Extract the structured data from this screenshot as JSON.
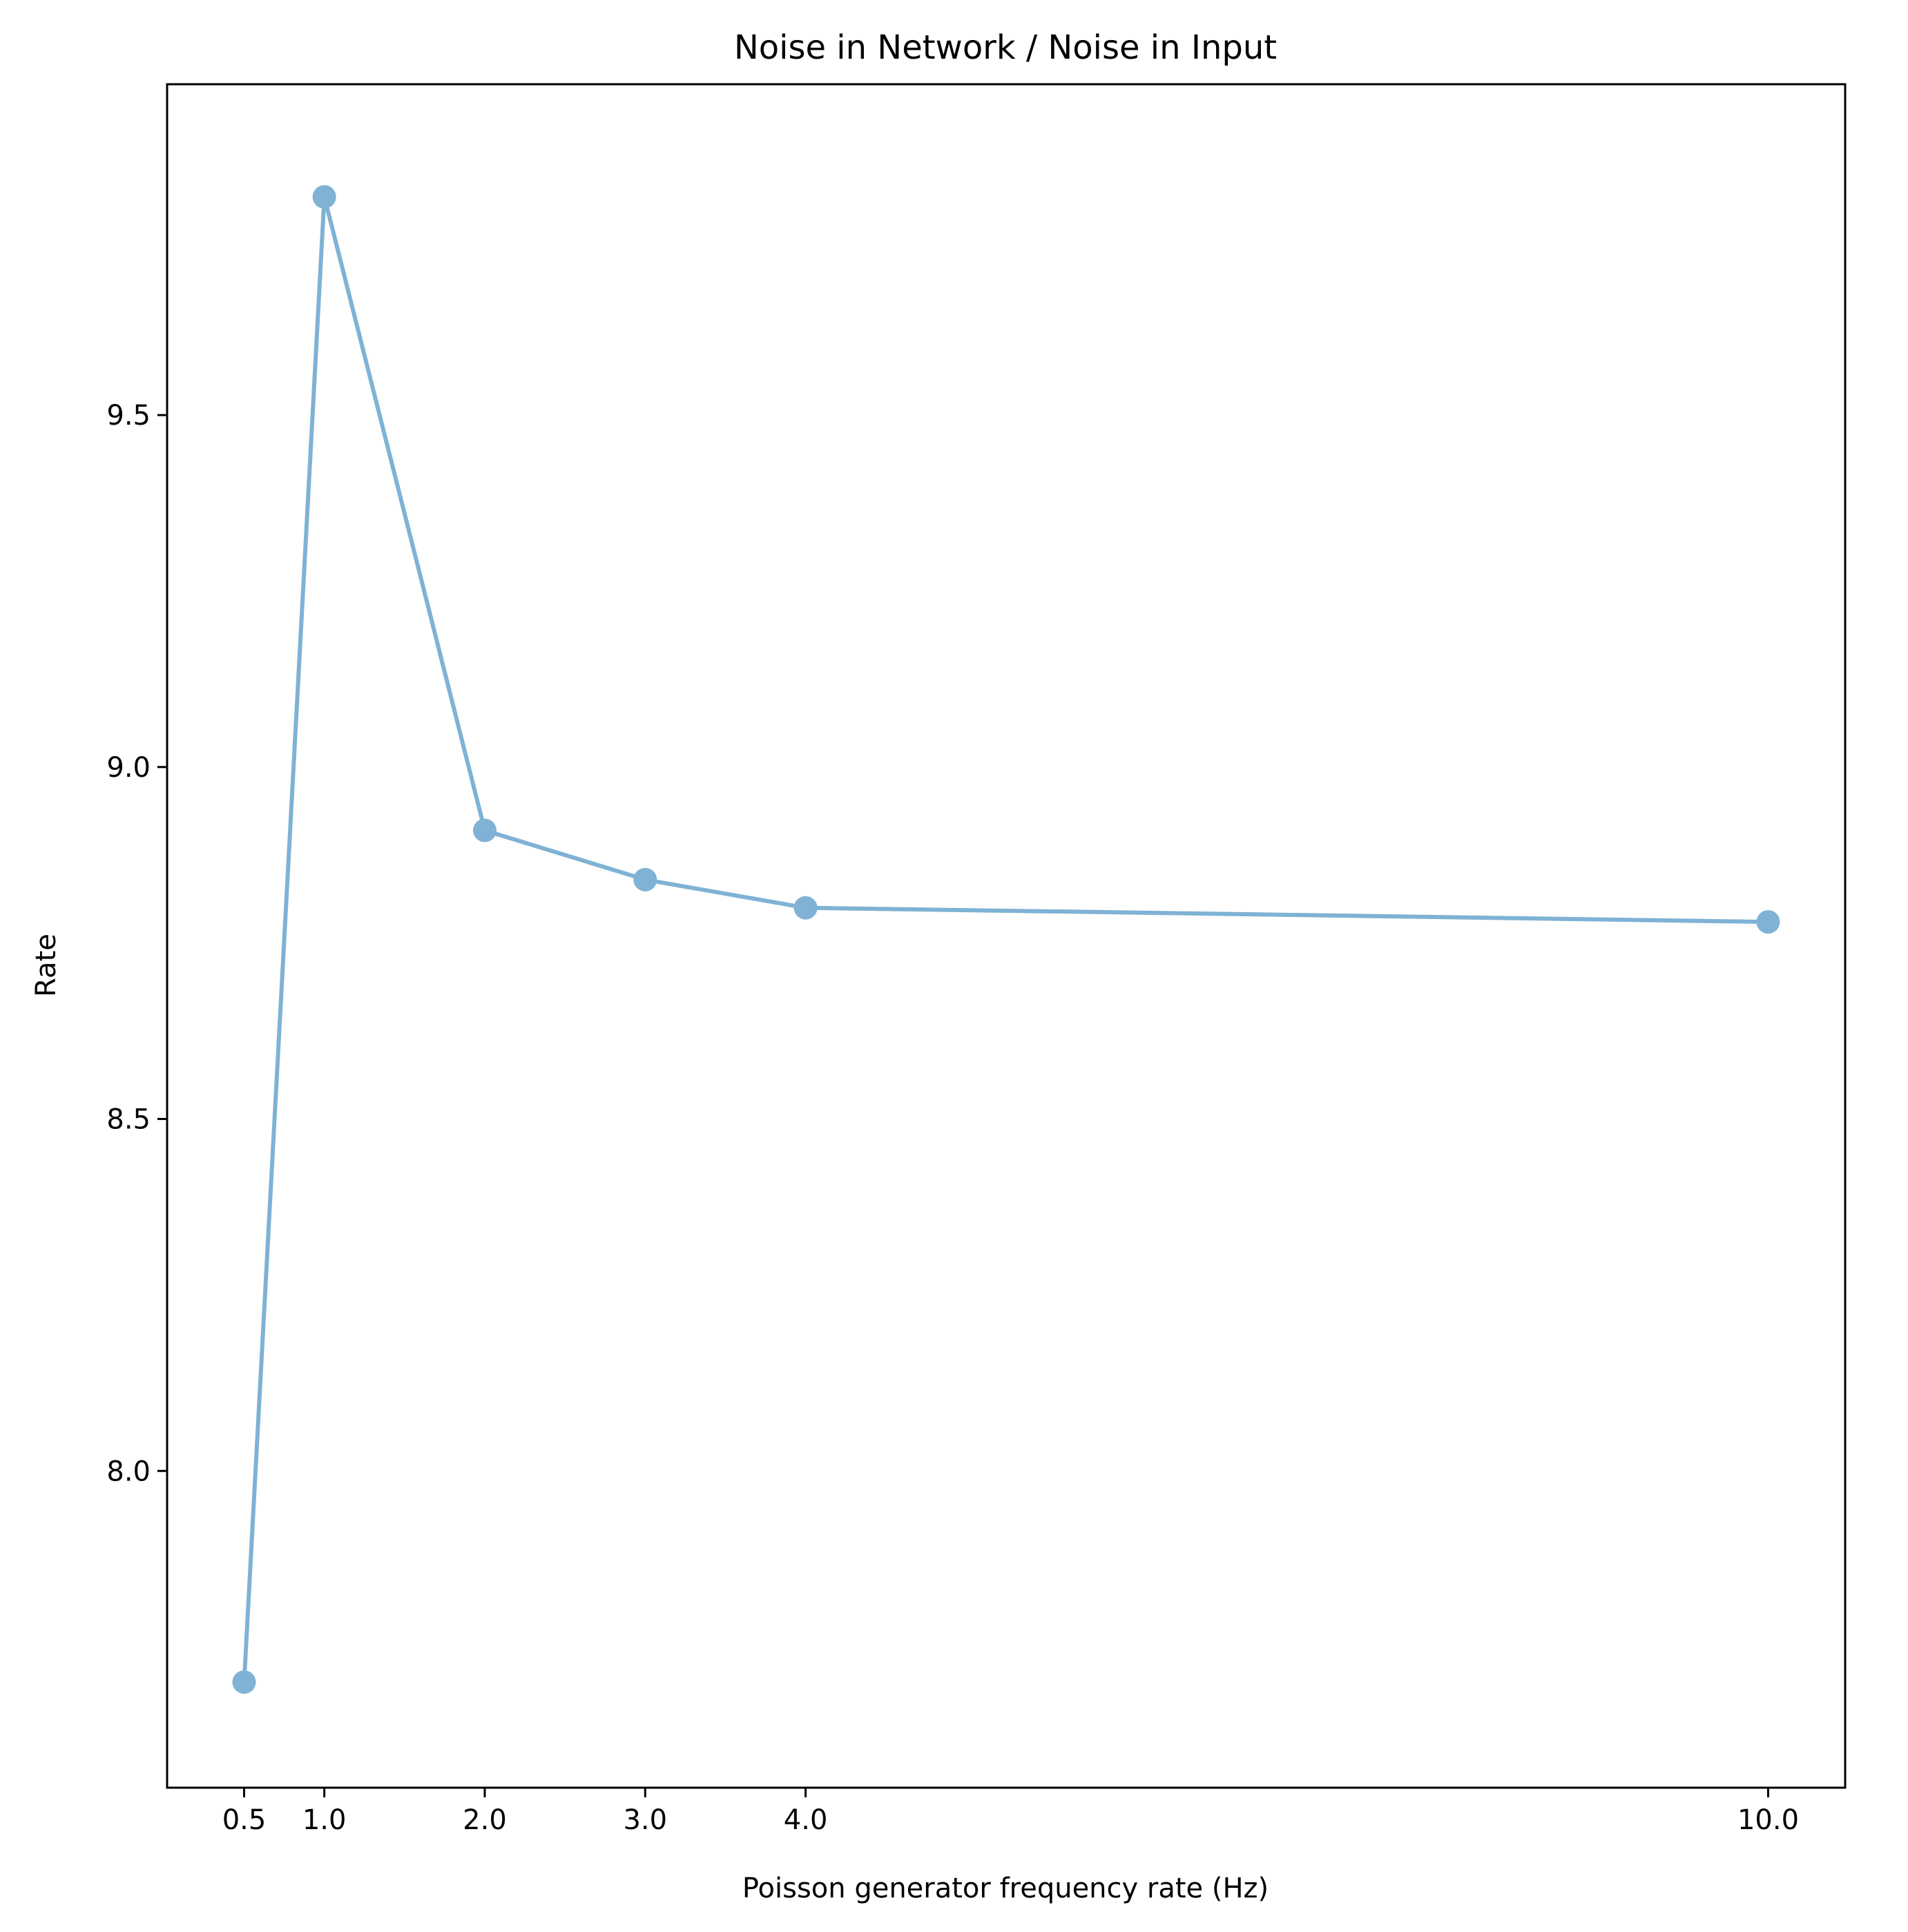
{
  "chart_data": {
    "type": "line",
    "title": "Noise in Network / Noise in Input",
    "xlabel": "Poisson generator frequency rate (Hz)",
    "ylabel": "Rate",
    "x": [
      0.5,
      1.0,
      2.0,
      3.0,
      4.0,
      10.0
    ],
    "x_tick_labels": [
      "0.5",
      "1.0",
      "2.0",
      "3.0",
      "4.0",
      "10.0"
    ],
    "y_ticks": [
      8.0,
      8.5,
      9.0,
      9.5
    ],
    "y_tick_labels": [
      "8.0",
      "8.5",
      "9.0",
      "9.5"
    ],
    "xlim": [
      0.02,
      10.48
    ],
    "ylim": [
      7.55,
      9.97
    ],
    "series": [
      {
        "values": [
          7.7,
          9.81,
          8.91,
          8.84,
          8.8,
          8.78
        ],
        "color": "#7fb2d5",
        "marker": "circle"
      }
    ],
    "grid": false
  }
}
